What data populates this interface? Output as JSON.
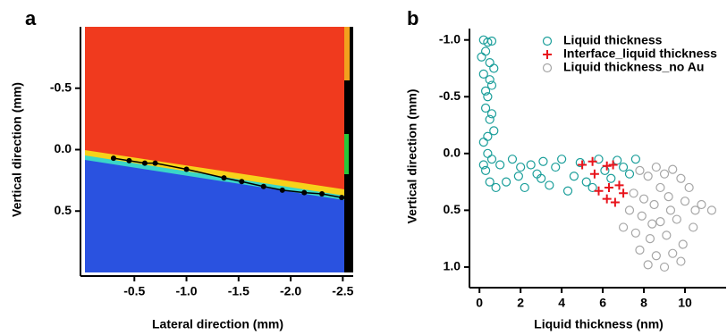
{
  "chart_data": [
    {
      "type": "line",
      "panel_label": "a",
      "x_label": "Lateral direction (mm)",
      "y_label": "Vertical direction (mm)",
      "xlim": [
        0,
        -2.6
      ],
      "ylim": [
        1.0,
        -1.0
      ],
      "xticks": [
        -0.5,
        {
          "value": -1,
          "label": "-1.0"
        },
        -1.5,
        {
          "value": -2,
          "label": "-2.0"
        },
        -2.5
      ],
      "yticks": [
        -0.5,
        {
          "value": 0,
          "label": "0.0"
        },
        0.5
      ],
      "color": "#000000",
      "x": [
        -0.3,
        -0.45,
        -0.6,
        -0.7,
        -1.0,
        -1.36,
        -1.53,
        -1.74,
        -1.92,
        -2.13,
        -2.3,
        -2.49
      ],
      "values": [
        0.07,
        0.09,
        0.11,
        0.11,
        0.16,
        0.23,
        0.26,
        0.3,
        0.33,
        0.35,
        0.36,
        0.39
      ]
    },
    {
      "type": "scatter",
      "panel_label": "b",
      "x_label": "Liquid thickness (nm)",
      "y_label": "Vertical direction (mm)",
      "xlim": [
        -0.4,
        12
      ],
      "ylim": [
        1.15,
        -1.1
      ],
      "xticks": [
        0,
        2,
        4,
        6,
        8,
        10
      ],
      "yticks": [
        {
          "value": -1,
          "label": "-1.0"
        },
        -0.5,
        {
          "value": 0,
          "label": "0.0"
        },
        0.5,
        {
          "value": 1,
          "label": "1.0"
        }
      ],
      "series": [
        {
          "name": "Liquid thickness",
          "color": "#1a9e9a",
          "marker": "circle",
          "x": [
            0.2,
            0.4,
            0.6,
            0.3,
            0.5,
            0.2,
            0.6,
            0.4,
            0.3,
            0.5,
            0.7,
            0.2,
            0.4,
            0.6,
            0.3,
            0.5,
            0.8,
            0.1,
            0.7,
            0.5,
            0.3,
            0.6,
            0.4,
            0.2,
            1.0,
            1.3,
            1.6,
            1.9,
            2.2,
            2.5,
            2.8,
            3.1,
            3.4,
            3.7,
            4.0,
            4.3,
            4.6,
            4.9,
            5.2,
            5.5,
            5.8,
            6.1,
            6.4,
            6.7,
            7.0,
            7.3,
            7.6,
            2.0,
            3.0
          ],
          "values": [
            -1.0,
            -0.98,
            -0.99,
            -0.9,
            -0.8,
            -0.7,
            -0.6,
            -0.5,
            -0.4,
            -0.3,
            -0.2,
            -0.1,
            0.0,
            0.05,
            0.15,
            0.25,
            0.3,
            -0.85,
            -0.75,
            -0.65,
            -0.55,
            -0.35,
            -0.15,
            0.1,
            0.1,
            0.25,
            0.05,
            0.2,
            0.3,
            0.1,
            0.18,
            0.07,
            0.28,
            0.12,
            0.05,
            0.33,
            0.2,
            0.08,
            0.25,
            0.3,
            0.05,
            0.15,
            0.22,
            0.06,
            0.12,
            0.18,
            0.05,
            0.12,
            0.22
          ]
        },
        {
          "name": "Interface_liquid thickness",
          "color": "#e8141c",
          "marker": "plus",
          "x": [
            5.0,
            5.5,
            5.6,
            5.8,
            6.2,
            6.3,
            6.5,
            6.6,
            6.8,
            7.0,
            6.2
          ],
          "values": [
            0.1,
            0.07,
            0.18,
            0.33,
            0.11,
            0.3,
            0.1,
            0.43,
            0.28,
            0.35,
            0.4
          ]
        },
        {
          "name": "Liquid thickness_no Au",
          "color": "#a6a6a6",
          "marker": "circle",
          "x": [
            7.8,
            8.2,
            8.6,
            9.0,
            9.4,
            9.8,
            10.2,
            7.5,
            8.0,
            8.5,
            9.2,
            10.0,
            10.5,
            7.3,
            7.9,
            8.8,
            9.6,
            10.4,
            7.6,
            8.3,
            9.1,
            9.9,
            7.8,
            8.6,
            9.4,
            8.2,
            9.0,
            9.8,
            10.8,
            7.0,
            11.3,
            8.8,
            9.3,
            8.4
          ],
          "values": [
            0.15,
            0.2,
            0.12,
            0.18,
            0.14,
            0.22,
            0.3,
            0.35,
            0.4,
            0.45,
            0.38,
            0.42,
            0.5,
            0.5,
            0.55,
            0.6,
            0.58,
            0.65,
            0.7,
            0.75,
            0.72,
            0.8,
            0.85,
            0.9,
            0.88,
            0.98,
            1.0,
            0.95,
            0.45,
            0.65,
            0.5,
            0.3,
            0.5,
            0.62
          ]
        }
      ]
    }
  ]
}
